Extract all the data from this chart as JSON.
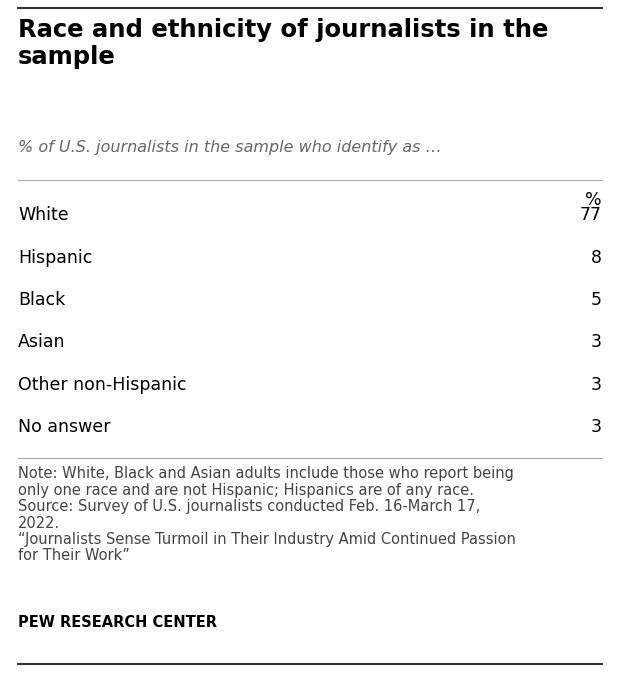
{
  "title": "Race and ethnicity of journalists in the\nsample",
  "subtitle": "% of U.S. journalists in the sample who identify as …",
  "col_header": "%",
  "categories": [
    "White",
    "Hispanic",
    "Black",
    "Asian",
    "Other non-Hispanic",
    "No answer"
  ],
  "values": [
    77,
    8,
    5,
    3,
    3,
    3
  ],
  "note_line1": "Note: White, Black and Asian adults include those who report being",
  "note_line2": "only one race and are not Hispanic; Hispanics are of any race.",
  "note_line3": "Source: Survey of U.S. journalists conducted Feb. 16-March 17,",
  "note_line4": "2022.",
  "note_line5": "“Journalists Sense Turmoil in Their Industry Amid Continued Passion",
  "note_line6": "for Their Work”",
  "footer": "PEW RESEARCH CENTER",
  "bg_color": "#ffffff",
  "text_color": "#000000",
  "note_color": "#444444",
  "title_fontsize": 17.5,
  "subtitle_fontsize": 11.5,
  "row_fontsize": 12.5,
  "note_fontsize": 10.5,
  "footer_fontsize": 10.5,
  "header_fontsize": 12.5
}
